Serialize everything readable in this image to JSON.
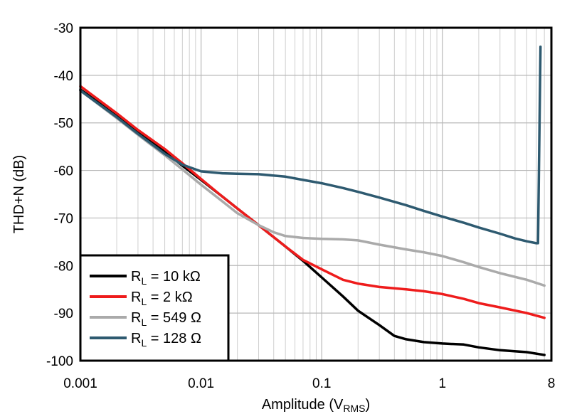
{
  "chart_data": {
    "type": "line",
    "title": "",
    "xlabel": "Amplitude (V",
    "xlabel_sub": "RMS",
    "xlabel_tail": ")",
    "ylabel": "THD+N (dB)",
    "xscale": "log",
    "xlim": [
      0.001,
      8
    ],
    "ylim": [
      -100,
      -30
    ],
    "grid": true,
    "legend_position": "bottom-left",
    "xticks": [
      {
        "value": 0.001,
        "label": "0.001"
      },
      {
        "value": 0.01,
        "label": "0.01"
      },
      {
        "value": 0.1,
        "label": "0.1"
      },
      {
        "value": 1,
        "label": "1"
      },
      {
        "value": 8,
        "label": "8"
      }
    ],
    "yticks": [
      {
        "value": -30,
        "label": "-30"
      },
      {
        "value": -40,
        "label": "-40"
      },
      {
        "value": -50,
        "label": "-50"
      },
      {
        "value": -60,
        "label": "-60"
      },
      {
        "value": -70,
        "label": "-70"
      },
      {
        "value": -80,
        "label": "-80"
      },
      {
        "value": -90,
        "label": "-90"
      },
      {
        "value": -100,
        "label": "-100"
      }
    ],
    "series": [
      {
        "name": "R_L = 10 kΩ",
        "label_main": "R",
        "label_sub": "L",
        "label_tail": " = 10 kΩ",
        "color": "#000000",
        "x": [
          0.001,
          0.002,
          0.003,
          0.005,
          0.007,
          0.01,
          0.015,
          0.02,
          0.03,
          0.05,
          0.07,
          0.1,
          0.15,
          0.2,
          0.3,
          0.4,
          0.5,
          0.7,
          1,
          1.5,
          2,
          3,
          5,
          7
        ],
        "y": [
          -43,
          -48.5,
          -52,
          -56,
          -59,
          -62,
          -65.5,
          -68,
          -71.5,
          -76,
          -79,
          -82.5,
          -86.5,
          -89.5,
          -92.5,
          -94.8,
          -95.5,
          -96.1,
          -96.4,
          -96.6,
          -97.2,
          -97.8,
          -98.2,
          -98.8
        ]
      },
      {
        "name": "R_L = 2 kΩ",
        "label_main": "R",
        "label_sub": "L",
        "label_tail": " = 2 kΩ",
        "color": "#ee1c1c",
        "x": [
          0.001,
          0.002,
          0.003,
          0.005,
          0.007,
          0.01,
          0.015,
          0.02,
          0.03,
          0.05,
          0.07,
          0.1,
          0.15,
          0.2,
          0.3,
          0.5,
          0.7,
          1,
          1.5,
          2,
          3,
          5,
          7
        ],
        "y": [
          -42.3,
          -48,
          -51.5,
          -55.5,
          -58.5,
          -61.8,
          -65.5,
          -68,
          -71.5,
          -76,
          -78.8,
          -80.8,
          -83,
          -83.8,
          -84.5,
          -85,
          -85.4,
          -86,
          -87,
          -87.9,
          -88.8,
          -90,
          -91
        ]
      },
      {
        "name": "R_L = 549 Ω",
        "label_main": "R",
        "label_sub": "L",
        "label_tail": " = 549 Ω",
        "color": "#aaaaaa",
        "x": [
          0.001,
          0.002,
          0.003,
          0.005,
          0.007,
          0.01,
          0.015,
          0.02,
          0.03,
          0.04,
          0.05,
          0.07,
          0.1,
          0.15,
          0.2,
          0.3,
          0.5,
          0.7,
          1,
          1.5,
          2,
          3,
          5,
          7
        ],
        "y": [
          -43.2,
          -49,
          -52.5,
          -56.8,
          -59.8,
          -63,
          -66.5,
          -69,
          -71.5,
          -73,
          -73.8,
          -74.2,
          -74.4,
          -74.5,
          -74.7,
          -75.6,
          -76.6,
          -77.2,
          -78,
          -79.3,
          -80.3,
          -81.6,
          -83,
          -84.2
        ]
      },
      {
        "name": "R_L = 128 Ω",
        "label_main": "R",
        "label_sub": "L",
        "label_tail": " = 128 Ω",
        "color": "#2e5a70",
        "x": [
          0.001,
          0.002,
          0.003,
          0.005,
          0.007,
          0.01,
          0.015,
          0.02,
          0.03,
          0.05,
          0.07,
          0.1,
          0.15,
          0.2,
          0.3,
          0.5,
          0.7,
          1,
          1.5,
          2,
          3,
          4,
          5,
          6,
          6.2,
          6.5
        ],
        "y": [
          -43.2,
          -48.8,
          -52.3,
          -56.5,
          -58.8,
          -60.2,
          -60.6,
          -60.7,
          -60.8,
          -61.3,
          -62,
          -62.7,
          -63.7,
          -64.5,
          -65.7,
          -67.3,
          -68.5,
          -69.7,
          -71,
          -72,
          -73.3,
          -74.3,
          -74.9,
          -75.3,
          -75.3,
          -34
        ]
      }
    ]
  }
}
